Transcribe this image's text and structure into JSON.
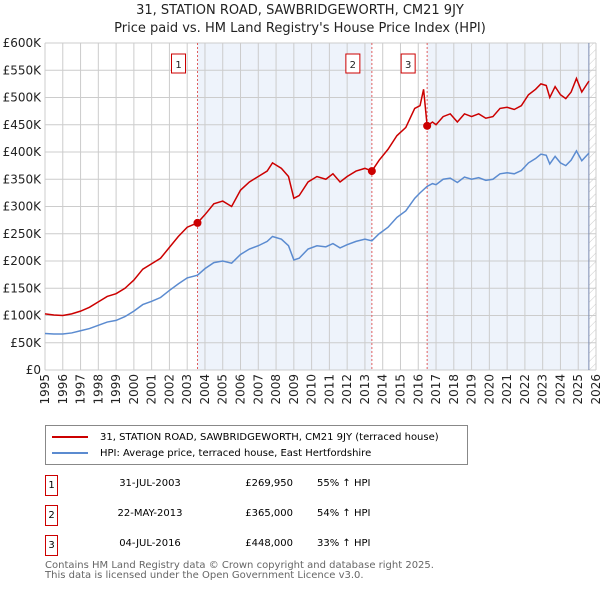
{
  "title": "31, STATION ROAD, SAWBRIDGEWORTH, CM21 9JY",
  "subtitle": "Price paid vs. HM Land Registry's House Price Index (HPI)",
  "chart_data": {
    "type": "line",
    "xlim": [
      1995,
      2026
    ],
    "ylim": [
      0,
      600000
    ],
    "x_ticks": [
      "1995",
      "1996",
      "1997",
      "1998",
      "1999",
      "2000",
      "2001",
      "2002",
      "2003",
      "2004",
      "2005",
      "2006",
      "2007",
      "2008",
      "2009",
      "2010",
      "2011",
      "2012",
      "2013",
      "2014",
      "2015",
      "2016",
      "2017",
      "2018",
      "2019",
      "2020",
      "2021",
      "2022",
      "2023",
      "2024",
      "2025",
      "2026"
    ],
    "y_ticks": [
      {
        "value": 0,
        "label": "£0"
      },
      {
        "value": 50000,
        "label": "£50K"
      },
      {
        "value": 100000,
        "label": "£100K"
      },
      {
        "value": 150000,
        "label": "£150K"
      },
      {
        "value": 200000,
        "label": "£200K"
      },
      {
        "value": 250000,
        "label": "£250K"
      },
      {
        "value": 300000,
        "label": "£300K"
      },
      {
        "value": 350000,
        "label": "£350K"
      },
      {
        "value": 400000,
        "label": "£400K"
      },
      {
        "value": 450000,
        "label": "£450K"
      },
      {
        "value": 500000,
        "label": "£500K"
      },
      {
        "value": 550000,
        "label": "£550K"
      },
      {
        "value": 600000,
        "label": "£600K"
      }
    ],
    "grid": true,
    "data_end": 2025.6,
    "series": [
      {
        "name": "31, STATION ROAD, SAWBRIDGEWORTH, CM21 9JY (terraced house)",
        "color": "#cc0000",
        "points": [
          [
            1995,
            103
          ],
          [
            1995.5,
            101
          ],
          [
            1996,
            100
          ],
          [
            1996.5,
            103
          ],
          [
            1997,
            108
          ],
          [
            1997.5,
            115
          ],
          [
            1998,
            125
          ],
          [
            1998.5,
            135
          ],
          [
            1999,
            140
          ],
          [
            1999.5,
            150
          ],
          [
            2000,
            165
          ],
          [
            2000.5,
            185
          ],
          [
            2001,
            195
          ],
          [
            2001.5,
            205
          ],
          [
            2002,
            225
          ],
          [
            2002.5,
            245
          ],
          [
            2003,
            262
          ],
          [
            2003.58,
            269.95
          ],
          [
            2004,
            285
          ],
          [
            2004.5,
            305
          ],
          [
            2005,
            310
          ],
          [
            2005.5,
            300
          ],
          [
            2006,
            330
          ],
          [
            2006.5,
            345
          ],
          [
            2007,
            355
          ],
          [
            2007.5,
            365
          ],
          [
            2007.8,
            380
          ],
          [
            2008.3,
            370
          ],
          [
            2008.7,
            355
          ],
          [
            2009,
            315
          ],
          [
            2009.3,
            320
          ],
          [
            2009.8,
            345
          ],
          [
            2010.3,
            355
          ],
          [
            2010.8,
            350
          ],
          [
            2011.2,
            360
          ],
          [
            2011.6,
            345
          ],
          [
            2012,
            355
          ],
          [
            2012.5,
            365
          ],
          [
            2013,
            370
          ],
          [
            2013.39,
            365
          ],
          [
            2013.8,
            385
          ],
          [
            2014.3,
            405
          ],
          [
            2014.8,
            430
          ],
          [
            2015.3,
            445
          ],
          [
            2015.8,
            480
          ],
          [
            2016.1,
            485
          ],
          [
            2016.3,
            515
          ],
          [
            2016.5,
            448
          ],
          [
            2016.8,
            455
          ],
          [
            2017,
            450
          ],
          [
            2017.4,
            465
          ],
          [
            2017.8,
            470
          ],
          [
            2018.2,
            455
          ],
          [
            2018.6,
            470
          ],
          [
            2019,
            465
          ],
          [
            2019.4,
            470
          ],
          [
            2019.8,
            462
          ],
          [
            2020.2,
            465
          ],
          [
            2020.6,
            480
          ],
          [
            2021,
            482
          ],
          [
            2021.4,
            478
          ],
          [
            2021.8,
            485
          ],
          [
            2022.2,
            505
          ],
          [
            2022.6,
            515
          ],
          [
            2022.9,
            525
          ],
          [
            2023.2,
            522
          ],
          [
            2023.4,
            500
          ],
          [
            2023.7,
            520
          ],
          [
            2024,
            505
          ],
          [
            2024.3,
            498
          ],
          [
            2024.6,
            510
          ],
          [
            2024.9,
            535
          ],
          [
            2025.2,
            510
          ],
          [
            2025.6,
            530
          ]
        ]
      },
      {
        "name": "HPI: Average price, terraced house, East Hertfordshire",
        "color": "#5b8bd0",
        "points": [
          [
            1995,
            67
          ],
          [
            1995.5,
            66
          ],
          [
            1996,
            66
          ],
          [
            1996.5,
            68
          ],
          [
            1997,
            72
          ],
          [
            1997.5,
            76
          ],
          [
            1998,
            82
          ],
          [
            1998.5,
            88
          ],
          [
            1999,
            91
          ],
          [
            1999.5,
            98
          ],
          [
            2000,
            108
          ],
          [
            2000.5,
            120
          ],
          [
            2001,
            126
          ],
          [
            2001.5,
            133
          ],
          [
            2002,
            146
          ],
          [
            2002.5,
            158
          ],
          [
            2003,
            169
          ],
          [
            2003.58,
            174
          ],
          [
            2004,
            186
          ],
          [
            2004.5,
            197
          ],
          [
            2005,
            200
          ],
          [
            2005.5,
            196
          ],
          [
            2006,
            212
          ],
          [
            2006.5,
            222
          ],
          [
            2007,
            228
          ],
          [
            2007.5,
            236
          ],
          [
            2007.8,
            245
          ],
          [
            2008.3,
            240
          ],
          [
            2008.7,
            228
          ],
          [
            2009,
            202
          ],
          [
            2009.3,
            205
          ],
          [
            2009.8,
            222
          ],
          [
            2010.3,
            228
          ],
          [
            2010.8,
            226
          ],
          [
            2011.2,
            232
          ],
          [
            2011.6,
            224
          ],
          [
            2012,
            230
          ],
          [
            2012.5,
            236
          ],
          [
            2013,
            240
          ],
          [
            2013.39,
            237
          ],
          [
            2013.8,
            250
          ],
          [
            2014.3,
            262
          ],
          [
            2014.8,
            280
          ],
          [
            2015.3,
            292
          ],
          [
            2015.8,
            315
          ],
          [
            2016.1,
            325
          ],
          [
            2016.5,
            337
          ],
          [
            2016.8,
            342
          ],
          [
            2017,
            340
          ],
          [
            2017.4,
            350
          ],
          [
            2017.8,
            352
          ],
          [
            2018.2,
            344
          ],
          [
            2018.6,
            354
          ],
          [
            2019,
            350
          ],
          [
            2019.4,
            353
          ],
          [
            2019.8,
            348
          ],
          [
            2020.2,
            350
          ],
          [
            2020.6,
            360
          ],
          [
            2021,
            362
          ],
          [
            2021.4,
            360
          ],
          [
            2021.8,
            366
          ],
          [
            2022.2,
            380
          ],
          [
            2022.6,
            388
          ],
          [
            2022.9,
            396
          ],
          [
            2023.2,
            394
          ],
          [
            2023.4,
            378
          ],
          [
            2023.7,
            392
          ],
          [
            2024,
            380
          ],
          [
            2024.3,
            375
          ],
          [
            2024.6,
            385
          ],
          [
            2024.9,
            402
          ],
          [
            2025.2,
            384
          ],
          [
            2025.6,
            398
          ]
        ]
      }
    ],
    "sales": [
      {
        "id": "1",
        "x": 2003.58,
        "value": 269950
      },
      {
        "id": "2",
        "x": 2013.39,
        "value": 365000
      },
      {
        "id": "3",
        "x": 2016.5,
        "value": 448000
      }
    ]
  },
  "legend": {
    "property": "31, STATION ROAD, SAWBRIDGEWORTH, CM21 9JY (terraced house)",
    "hpi": "HPI: Average price, terraced house, East Hertfordshire"
  },
  "transactions": [
    {
      "num": "1",
      "date": "31-JUL-2003",
      "price": "£269,950",
      "pct": "55% ↑ HPI"
    },
    {
      "num": "2",
      "date": "22-MAY-2013",
      "price": "£365,000",
      "pct": "54% ↑ HPI"
    },
    {
      "num": "3",
      "date": "04-JUL-2016",
      "price": "£448,000",
      "pct": "33% ↑ HPI"
    }
  ],
  "footer": {
    "line1": "Contains HM Land Registry data © Crown copyright and database right 2025.",
    "line2": "This data is licensed under the Open Government Licence v3.0."
  },
  "colors": {
    "red": "#cc0000",
    "blue": "#5b8bd0",
    "shade": "#eef3fb",
    "grid": "#cccccc"
  }
}
